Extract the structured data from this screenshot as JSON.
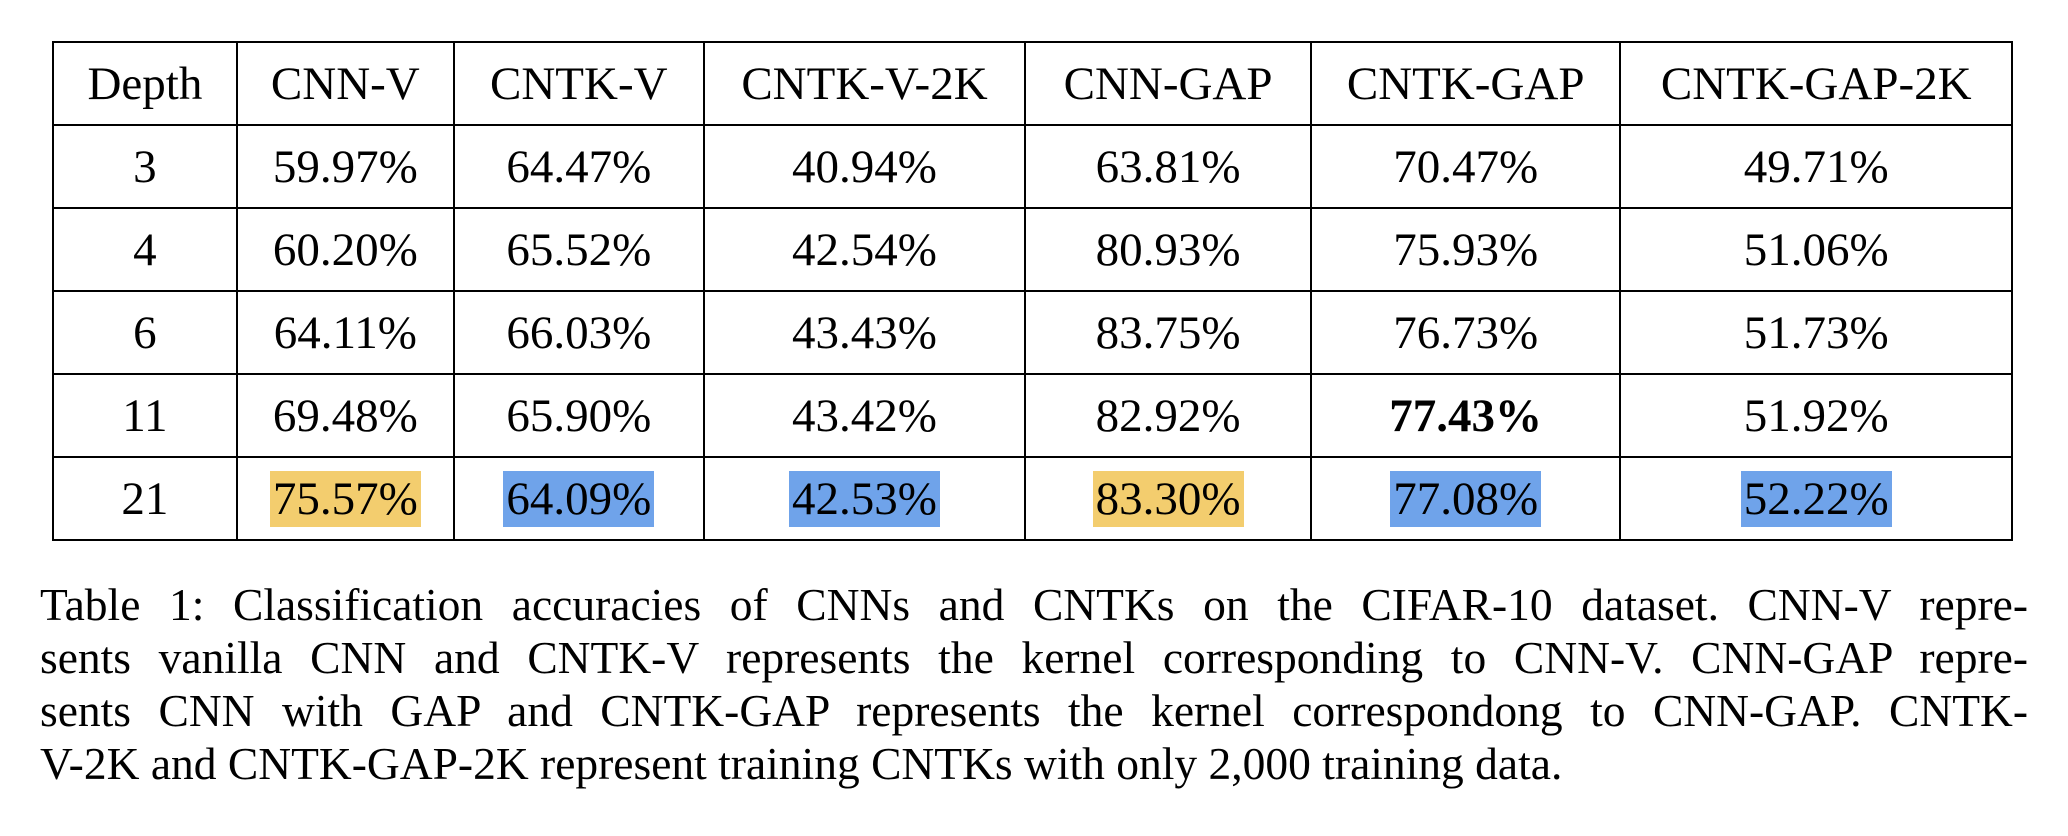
{
  "table": {
    "headers": [
      "Depth",
      "CNN-V",
      "CNTK-V",
      "CNTK-V-2K",
      "CNN-GAP",
      "CNTK-GAP",
      "CNTK-GAP-2K"
    ],
    "rows": [
      {
        "depth": "3",
        "cells": [
          "59.97%",
          "64.47%",
          "40.94%",
          "63.81%",
          "70.47%",
          "49.71%"
        ]
      },
      {
        "depth": "4",
        "cells": [
          "60.20%",
          "65.52%",
          "42.54%",
          "80.93%",
          "75.93%",
          "51.06%"
        ]
      },
      {
        "depth": "6",
        "cells": [
          "64.11%",
          "66.03%",
          "43.43%",
          "83.75%",
          "76.73%",
          "51.73%"
        ]
      },
      {
        "depth": "11",
        "cells": [
          "69.48%",
          "65.90%",
          "43.42%",
          "82.92%",
          "77.43%",
          "51.92%"
        ]
      },
      {
        "depth": "21",
        "cells": [
          "75.57%",
          "64.09%",
          "42.53%",
          "83.30%",
          "77.08%",
          "52.22%"
        ]
      }
    ],
    "bold_cell": {
      "row": 3,
      "col": 4
    },
    "highlights": [
      {
        "row": 4,
        "col": 0,
        "color": "#f3cd6e"
      },
      {
        "row": 4,
        "col": 1,
        "color": "#6fa3ea"
      },
      {
        "row": 4,
        "col": 2,
        "color": "#6fa3ea"
      },
      {
        "row": 4,
        "col": 3,
        "color": "#f3cd6e"
      },
      {
        "row": 4,
        "col": 4,
        "color": "#6fa3ea"
      },
      {
        "row": 4,
        "col": 5,
        "color": "#6fa3ea"
      }
    ]
  },
  "caption": {
    "lines": [
      "Table 1: Classification accuracies of CNNs and CNTKs on the CIFAR-10 dataset. CNN-V repre-",
      "sents vanilla CNN and CNTK-V represents the kernel corresponding to CNN-V. CNN-GAP repre-",
      "sents CNN with GAP and CNTK-GAP represents the kernel correspondong to CNN-GAP. CNTK-",
      "V-2K and CNTK-GAP-2K represent training CNTKs with only 2,000 training data."
    ]
  }
}
